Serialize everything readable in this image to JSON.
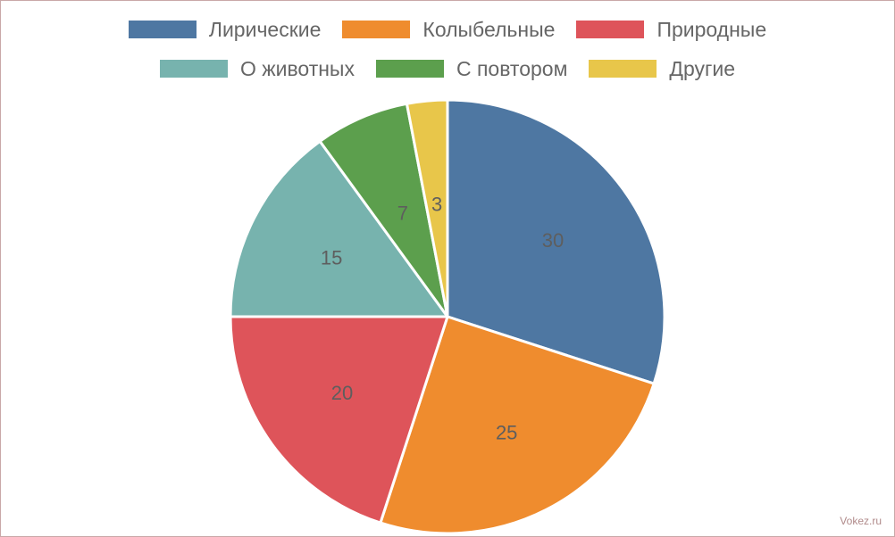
{
  "chart_data": {
    "type": "pie",
    "categories": [
      "Лирические",
      "Колыбельные",
      "Природные",
      "О животных",
      "С повтором",
      "Другие"
    ],
    "values": [
      30,
      25,
      20,
      15,
      7,
      3
    ],
    "colors": [
      "#4e77a2",
      "#ef8c2e",
      "#de545a",
      "#77b3ae",
      "#5c9f4d",
      "#e8c64a"
    ],
    "legend_position": "top"
  },
  "watermark": "Vokez.ru"
}
